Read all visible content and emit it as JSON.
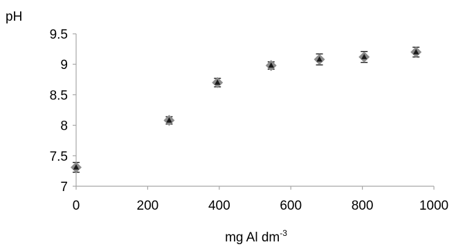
{
  "chart_data": {
    "type": "scatter",
    "title": "",
    "xlabel": "mg Al dm",
    "xlabel_superscript": "-3",
    "ylabel": "pH",
    "xlim": [
      0,
      1000
    ],
    "ylim": [
      7,
      9.5
    ],
    "x_ticks": [
      0,
      200,
      400,
      600,
      800,
      1000
    ],
    "x_tick_labels": [
      "0",
      "200",
      "400",
      "600",
      "800",
      "1000"
    ],
    "y_ticks": [
      7,
      7.5,
      8,
      8.5,
      9,
      9.5
    ],
    "y_tick_labels": [
      "7",
      "7.5",
      "8",
      "8.5",
      "9",
      "9.5"
    ],
    "grid": false,
    "legend": "none",
    "series": [
      {
        "x": [
          0,
          260,
          395,
          545,
          680,
          805,
          950
        ],
        "y": [
          7.31,
          8.08,
          8.7,
          8.98,
          9.08,
          9.12,
          9.2
        ],
        "error": [
          0.08,
          0.06,
          0.07,
          0.06,
          0.09,
          0.09,
          0.08
        ]
      }
    ],
    "colors": {
      "marker_outer": "#8c8c8c",
      "marker_inner": "#1a1a1a",
      "error_bar": "#1a1a1a",
      "axis": "#a6a6a6"
    }
  }
}
